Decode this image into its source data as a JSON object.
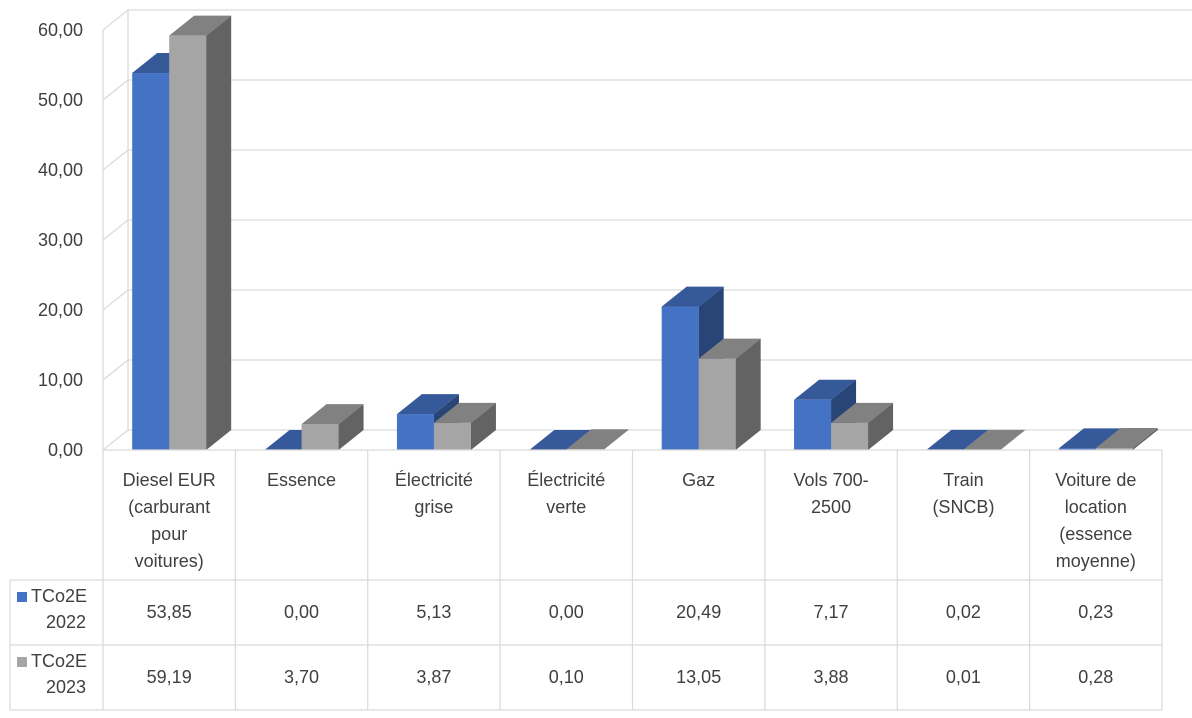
{
  "chart_data": {
    "type": "bar",
    "title": "",
    "xlabel": "",
    "ylabel": "",
    "ylim": [
      0,
      60
    ],
    "yticks": [
      0,
      10,
      20,
      30,
      40,
      50,
      60
    ],
    "ytick_labels": [
      "0,00",
      "10,00",
      "20,00",
      "30,00",
      "40,00",
      "50,00",
      "60,00"
    ],
    "grid": true,
    "three_d": true,
    "data_table": true,
    "legend_position": "in-data-table",
    "categories": [
      [
        "Diesel EUR",
        "(carburant",
        "pour",
        "voitures)"
      ],
      [
        "Essence"
      ],
      [
        "Électricité",
        "grise"
      ],
      [
        "Électricité",
        "verte"
      ],
      [
        "Gaz"
      ],
      [
        "Vols 700-",
        "2500"
      ],
      [
        "Train",
        "(SNCB)"
      ],
      [
        "Voiture de",
        "location",
        "(essence",
        "moyenne)"
      ]
    ],
    "series": [
      {
        "name": [
          "TCo2E",
          "2022"
        ],
        "color": "#4472C4",
        "values": [
          53.85,
          0.0,
          5.13,
          0.0,
          20.49,
          7.17,
          0.02,
          0.23
        ],
        "labels": [
          "53,85",
          "0,00",
          "5,13",
          "0,00",
          "20,49",
          "7,17",
          "0,02",
          "0,23"
        ]
      },
      {
        "name": [
          "TCo2E",
          "2023"
        ],
        "color": "#A5A5A5",
        "values": [
          59.19,
          3.7,
          3.87,
          0.1,
          13.05,
          3.88,
          0.01,
          0.28
        ],
        "labels": [
          "59,19",
          "3,70",
          "3,87",
          "0,10",
          "13,05",
          "3,88",
          "0,01",
          "0,28"
        ]
      }
    ]
  }
}
